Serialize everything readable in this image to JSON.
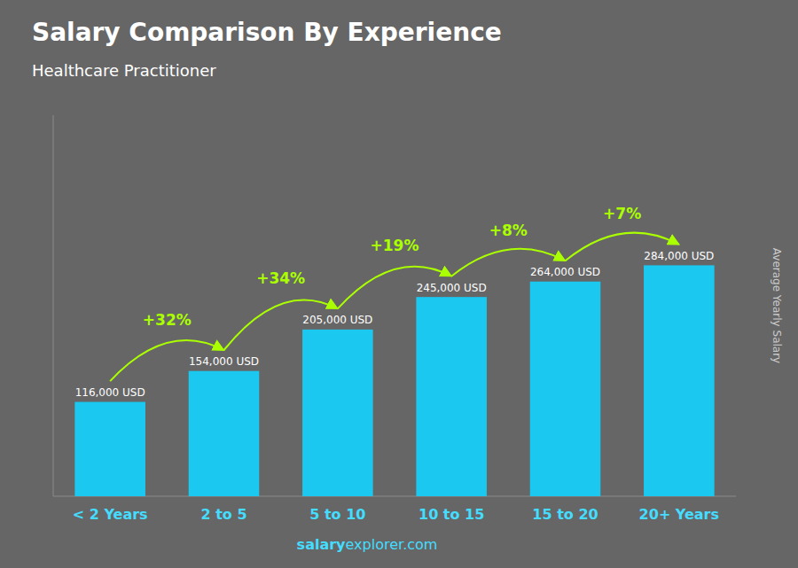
{
  "chart_data": {
    "type": "bar",
    "title": "Salary Comparison By Experience",
    "subtitle": "Healthcare Practitioner",
    "ylabel": "Average Yearly Salary",
    "categories": [
      "< 2 Years",
      "2 to 5",
      "5 to 10",
      "10 to 15",
      "15 to 20",
      "20+ Years"
    ],
    "values": [
      116000,
      154000,
      205000,
      245000,
      264000,
      284000
    ],
    "value_labels": [
      "116,000 USD",
      "154,000 USD",
      "205,000 USD",
      "245,000 USD",
      "264,000 USD",
      "284,000 USD"
    ],
    "data_labels": true,
    "color": "#1ac8f0",
    "ylim": [
      0,
      468600
    ],
    "tick_labels": "x",
    "grid": false,
    "annotations": [
      "+32%",
      "+34%",
      "+19%",
      "+8%",
      "+7%"
    ],
    "watermark": [
      "salary",
      "explorer.com"
    ]
  }
}
